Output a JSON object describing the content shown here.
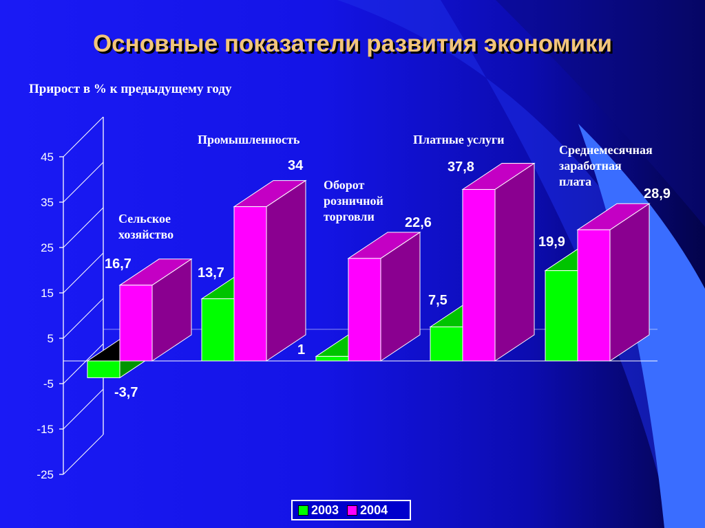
{
  "colors": {
    "title": "#f2c57a",
    "series_2003_front": "#00ff00",
    "series_2003_top": "#00c400",
    "series_2003_side": "#009400",
    "series_2004_front": "#ff00ff",
    "series_2004_top": "#c400c4",
    "series_2004_side": "#8a0090",
    "negative_top": "#000000",
    "accent_band": "#3a6dff"
  },
  "chart_data": {
    "type": "bar",
    "title": "Основные показатели развития экономики",
    "subtitle": "Прирост в % к предыдущему году",
    "categories": [
      "Сельское хозяйство",
      "Промышленность",
      "Оборот розничной торговли",
      "Платные услуги",
      "Среднемесячная заработная плата"
    ],
    "category_labels": [
      "Сельское\nхозяйство",
      "Промышленность",
      "Оборот\nрозничной\nторговли",
      "Платные услуги",
      "Среднемесячная\nзаработная\nплата"
    ],
    "series": [
      {
        "name": "2003",
        "values": [
          -3.7,
          13.7,
          1,
          7.5,
          19.9
        ],
        "labels": [
          "-3,7",
          "13,7",
          "1",
          "7,5",
          "19,9"
        ]
      },
      {
        "name": "2004",
        "values": [
          16.7,
          34,
          22.6,
          37.8,
          28.9
        ],
        "labels": [
          "16,7",
          "34",
          "22,6",
          "37,8",
          "28,9"
        ]
      }
    ],
    "ylim": [
      -25,
      45
    ],
    "yticks": [
      45,
      35,
      25,
      15,
      5,
      -5,
      -15,
      -25
    ],
    "ytick_labels": [
      "45",
      "35",
      "25",
      "15",
      "5",
      "-5",
      "-15",
      "-25"
    ],
    "legend_position": "bottom-center",
    "grid": false
  }
}
